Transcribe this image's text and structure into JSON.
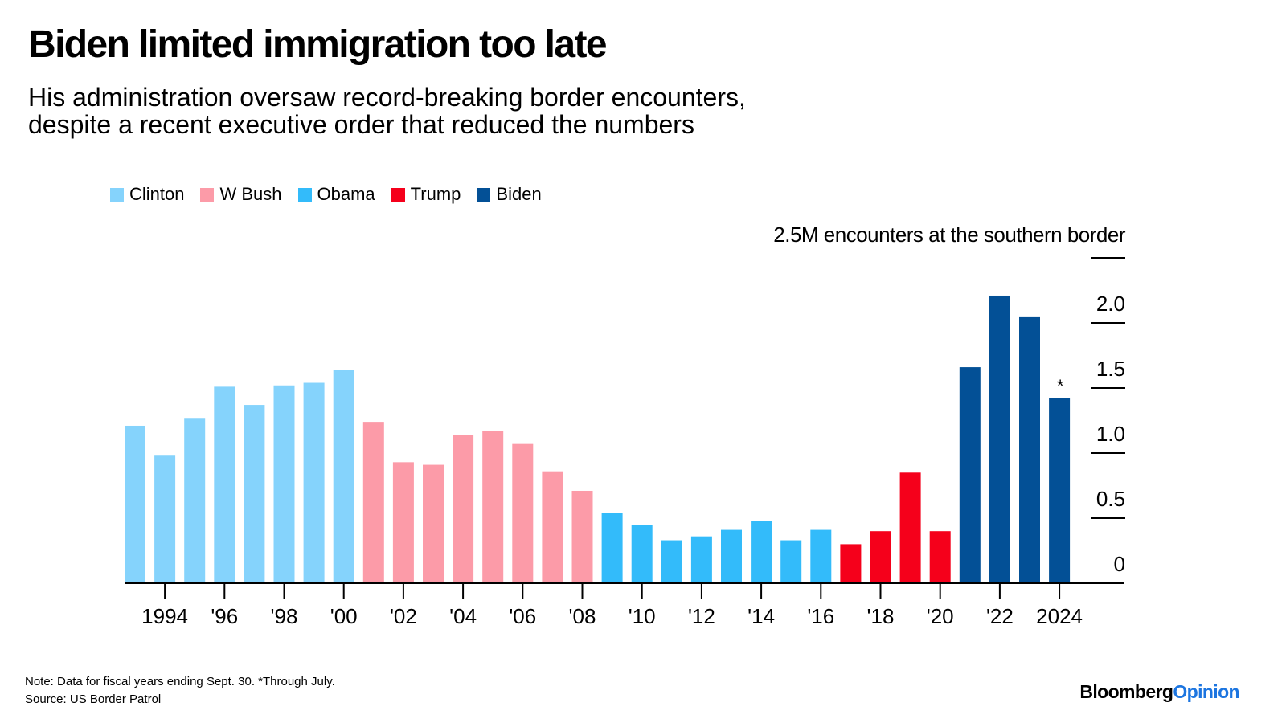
{
  "title": "Biden limited immigration too late",
  "subtitle": [
    "His administration oversaw record-breaking border encounters,",
    "despite a recent executive order that reduced the numbers"
  ],
  "legend": [
    {
      "label": "Clinton",
      "color": "#85d3fc"
    },
    {
      "label": "W Bush",
      "color": "#fc9ba8"
    },
    {
      "label": "Obama",
      "color": "#33bbfa"
    },
    {
      "label": "Trump",
      "color": "#f5001b"
    },
    {
      "label": "Biden",
      "color": "#035096"
    }
  ],
  "note": "Note: Data for fiscal years ending Sept. 30. *Through July.",
  "source": "Source: US Border Patrol",
  "brand": {
    "bloomberg": "Bloomberg",
    "opinion": "Opinion"
  },
  "chart_data": {
    "type": "bar",
    "title": "Biden limited immigration too late",
    "ylabel": "2.5M encounters at the southern border",
    "xlabel": "",
    "ylim": [
      0,
      2.5
    ],
    "y_ticks": [
      "0",
      "0.5",
      "1.0",
      "1.5",
      "2.0"
    ],
    "y_tick_values": [
      0,
      0.5,
      1.0,
      1.5,
      2.0
    ],
    "x_tick_labels": [
      {
        "year": 1994,
        "label": "1994"
      },
      {
        "year": 1996,
        "label": "'96"
      },
      {
        "year": 1998,
        "label": "'98"
      },
      {
        "year": 2000,
        "label": "'00"
      },
      {
        "year": 2002,
        "label": "'02"
      },
      {
        "year": 2004,
        "label": "'04"
      },
      {
        "year": 2006,
        "label": "'06"
      },
      {
        "year": 2008,
        "label": "'08"
      },
      {
        "year": 2010,
        "label": "'10"
      },
      {
        "year": 2012,
        "label": "'12"
      },
      {
        "year": 2014,
        "label": "'14"
      },
      {
        "year": 2016,
        "label": "'16"
      },
      {
        "year": 2018,
        "label": "'18"
      },
      {
        "year": 2020,
        "label": "'20"
      },
      {
        "year": 2022,
        "label": "'22"
      },
      {
        "year": 2024,
        "label": "2024"
      }
    ],
    "annotation": {
      "year": 2024,
      "text": "*"
    },
    "series": [
      {
        "name": "Clinton",
        "color": "#85d3fc",
        "years": [
          1993,
          1994,
          1995,
          1996,
          1997,
          1998,
          1999,
          2000
        ],
        "values": [
          1.21,
          0.98,
          1.27,
          1.51,
          1.37,
          1.52,
          1.54,
          1.64
        ]
      },
      {
        "name": "W Bush",
        "color": "#fc9ba8",
        "years": [
          2001,
          2002,
          2003,
          2004,
          2005,
          2006,
          2007,
          2008
        ],
        "values": [
          1.24,
          0.93,
          0.91,
          1.14,
          1.17,
          1.07,
          0.86,
          0.71
        ]
      },
      {
        "name": "Obama",
        "color": "#33bbfa",
        "years": [
          2009,
          2010,
          2011,
          2012,
          2013,
          2014,
          2015,
          2016
        ],
        "values": [
          0.54,
          0.45,
          0.33,
          0.36,
          0.41,
          0.48,
          0.33,
          0.41
        ]
      },
      {
        "name": "Trump",
        "color": "#f5001b",
        "years": [
          2017,
          2018,
          2019,
          2020
        ],
        "values": [
          0.3,
          0.4,
          0.85,
          0.4
        ]
      },
      {
        "name": "Biden",
        "color": "#035096",
        "years": [
          2021,
          2022,
          2023,
          2024
        ],
        "values": [
          1.66,
          2.21,
          2.05,
          1.42
        ]
      }
    ]
  }
}
